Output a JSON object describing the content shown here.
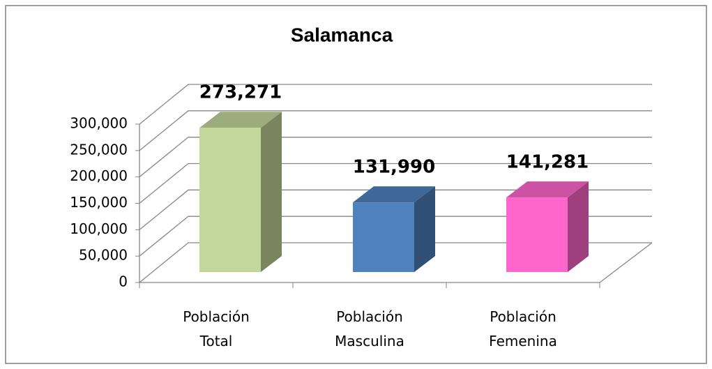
{
  "chart_data": {
    "type": "bar3d",
    "title": "Salamanca",
    "categories": [
      "Población Total",
      "Población Masculina",
      "Población Femenina"
    ],
    "values": [
      273271,
      131990,
      141281
    ],
    "value_labels": [
      "273,271",
      "131,990",
      "141,281"
    ],
    "colors": [
      "#c4d79b",
      "#4f81bd",
      "#ff66cc"
    ],
    "ylim": [
      0,
      300000
    ],
    "yticks": [
      0,
      {
        "value": 50000,
        "label": "50,000"
      },
      {
        "value": 100000,
        "label": "100,000"
      },
      {
        "value": 150000,
        "label": "150,000"
      },
      {
        "value": 200000,
        "label": "200,000"
      },
      {
        "value": 250000,
        "label": "250,000"
      },
      {
        "value": 300000,
        "label": "300,000"
      }
    ],
    "grid": true
  }
}
